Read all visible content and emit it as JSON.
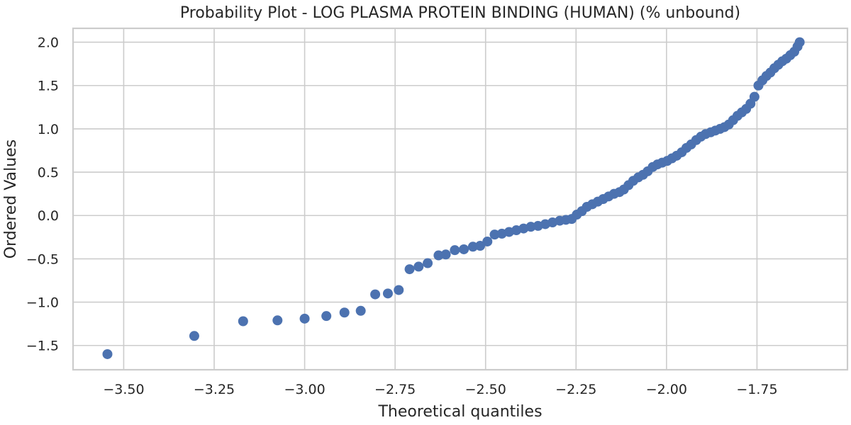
{
  "chart_data": {
    "type": "scatter",
    "title": "Probability Plot - LOG PLASMA PROTEIN BINDING (HUMAN) (% unbound)",
    "xlabel": "Theoretical quantiles",
    "ylabel": "Ordered Values",
    "xlim": [
      -3.64,
      -1.5
    ],
    "ylim": [
      -1.78,
      2.16
    ],
    "xticks": [
      -3.5,
      -3.25,
      -3.0,
      -2.75,
      -2.5,
      -2.25,
      -2.0,
      -1.75
    ],
    "xtick_labels": [
      "−3.50",
      "−3.25",
      "−3.00",
      "−2.75",
      "−2.50",
      "−2.25",
      "−2.00",
      "−1.75"
    ],
    "yticks": [
      -1.5,
      -1.0,
      -0.5,
      0.0,
      0.5,
      1.0,
      1.5,
      2.0
    ],
    "ytick_labels": [
      "−1.5",
      "−1.0",
      "−0.5",
      "0.0",
      "0.5",
      "1.0",
      "1.5",
      "2.0"
    ],
    "grid": true,
    "marker_color": "#4c72b0",
    "series": [
      {
        "name": "Ordered Values",
        "x": [
          -3.545,
          -3.305,
          -3.17,
          -3.075,
          -3.0,
          -2.94,
          -2.89,
          -2.845,
          -2.805,
          -2.77,
          -2.74,
          -2.71,
          -2.685,
          -2.66,
          -2.63,
          -2.61,
          -2.585,
          -2.56,
          -2.535,
          -2.515,
          -2.495,
          -2.475,
          -2.455,
          -2.435,
          -2.415,
          -2.395,
          -2.375,
          -2.355,
          -2.335,
          -2.315,
          -2.295,
          -2.278,
          -2.262,
          -2.248,
          -2.234,
          -2.22,
          -2.205,
          -2.19,
          -2.175,
          -2.16,
          -2.145,
          -2.13,
          -2.118,
          -2.105,
          -2.092,
          -2.078,
          -2.065,
          -2.052,
          -2.038,
          -2.025,
          -2.012,
          -1.998,
          -1.985,
          -1.972,
          -1.958,
          -1.945,
          -1.932,
          -1.918,
          -1.905,
          -1.892,
          -1.878,
          -1.865,
          -1.852,
          -1.84,
          -1.828,
          -1.816,
          -1.804,
          -1.792,
          -1.78,
          -1.768,
          -1.757,
          -1.746,
          -1.735,
          -1.724,
          -1.713,
          -1.702,
          -1.691,
          -1.68,
          -1.669,
          -1.658,
          -1.647,
          -1.638,
          -1.632
        ],
        "y": [
          -1.6,
          -1.39,
          -1.22,
          -1.21,
          -1.19,
          -1.16,
          -1.12,
          -1.1,
          -0.91,
          -0.9,
          -0.86,
          -0.62,
          -0.59,
          -0.55,
          -0.46,
          -0.45,
          -0.4,
          -0.39,
          -0.36,
          -0.35,
          -0.3,
          -0.22,
          -0.21,
          -0.19,
          -0.17,
          -0.15,
          -0.13,
          -0.12,
          -0.1,
          -0.08,
          -0.06,
          -0.05,
          -0.04,
          0.01,
          0.05,
          0.1,
          0.13,
          0.16,
          0.19,
          0.22,
          0.25,
          0.27,
          0.3,
          0.35,
          0.4,
          0.44,
          0.47,
          0.51,
          0.56,
          0.59,
          0.61,
          0.63,
          0.66,
          0.69,
          0.73,
          0.78,
          0.82,
          0.87,
          0.91,
          0.94,
          0.96,
          0.98,
          1.0,
          1.02,
          1.05,
          1.1,
          1.15,
          1.19,
          1.23,
          1.29,
          1.37,
          1.5,
          1.56,
          1.61,
          1.65,
          1.7,
          1.74,
          1.78,
          1.81,
          1.85,
          1.89,
          1.95,
          2.0
        ]
      }
    ]
  }
}
